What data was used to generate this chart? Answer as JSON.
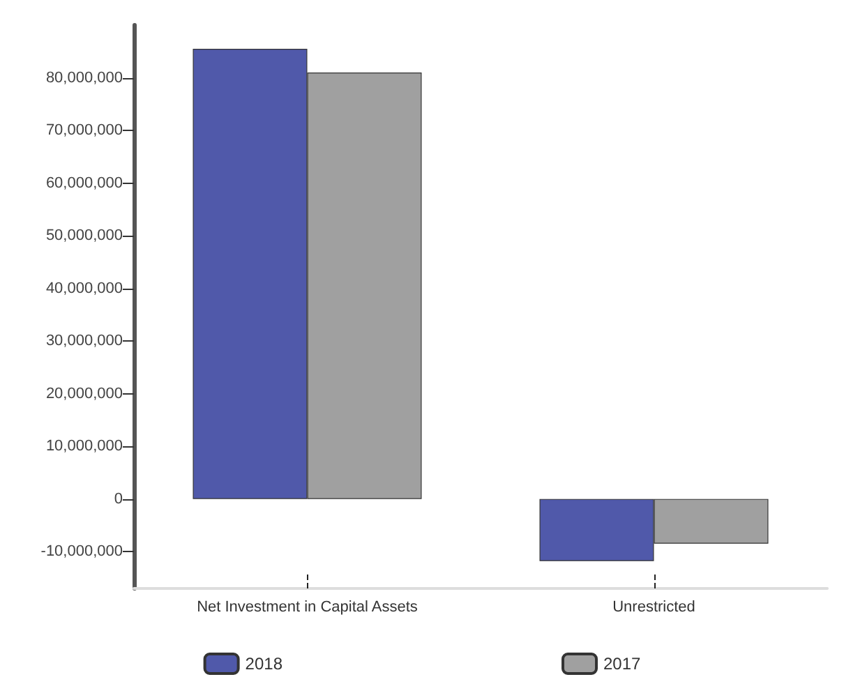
{
  "chart_data": {
    "type": "bar",
    "categories": [
      "Net Investment in Capital Assets",
      "Unrestricted"
    ],
    "series": [
      {
        "name": "2018",
        "color": "#5059aa",
        "values": [
          85500000,
          -11800000
        ]
      },
      {
        "name": "2017",
        "color": "#a0a0a0",
        "values": [
          81000000,
          -8500000
        ]
      }
    ],
    "ylim": [
      -17000000,
      90000000
    ],
    "yticks": [
      {
        "value": -10000000,
        "label": "-10,000,000"
      },
      0,
      {
        "value": 10000000,
        "label": "10,000,000"
      },
      {
        "value": 20000000,
        "label": "20,000,000"
      },
      {
        "value": 30000000,
        "label": "30,000,000"
      },
      {
        "value": 40000000,
        "label": "40,000,000"
      },
      {
        "value": 50000000,
        "label": "50,000,000"
      },
      {
        "value": 60000000,
        "label": "60,000,000"
      },
      {
        "value": 70000000,
        "label": "70,000,000"
      },
      {
        "value": 80000000,
        "label": "80,000,000"
      }
    ],
    "grid": false,
    "legend": "bottom"
  }
}
